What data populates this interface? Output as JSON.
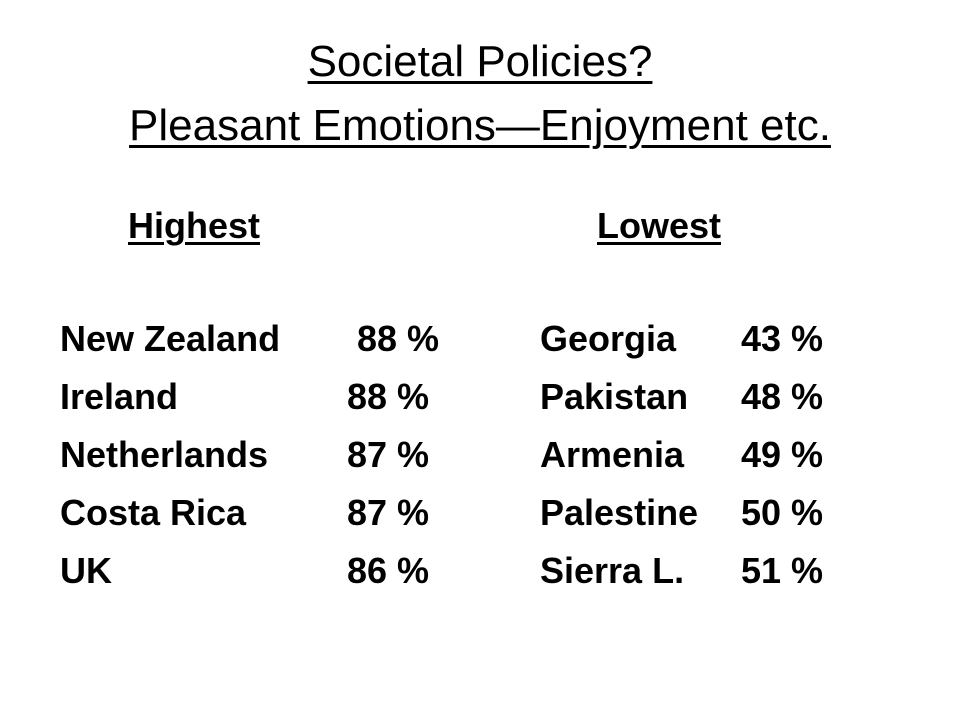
{
  "title": {
    "line1": "Societal Policies?",
    "line2": "Pleasant Emotions—Enjoyment etc."
  },
  "highest": {
    "heading": "Highest",
    "rows": [
      {
        "country": "New Zealand",
        "value": "88 %"
      },
      {
        "country": "Ireland",
        "value": "88 %"
      },
      {
        "country": "Netherlands",
        "value": "87 %"
      },
      {
        "country": "Costa Rica",
        "value": "87 %"
      },
      {
        "country": "UK",
        "value": "86 %"
      }
    ]
  },
  "lowest": {
    "heading": "Lowest",
    "rows": [
      {
        "country": "Georgia",
        "value": "43 %"
      },
      {
        "country": "Pakistan",
        "value": "48 %"
      },
      {
        "country": "Armenia",
        "value": "49 %"
      },
      {
        "country": "Palestine",
        "value": "50 %"
      },
      {
        "country": "Sierra L.",
        "value": "51 %"
      }
    ]
  }
}
